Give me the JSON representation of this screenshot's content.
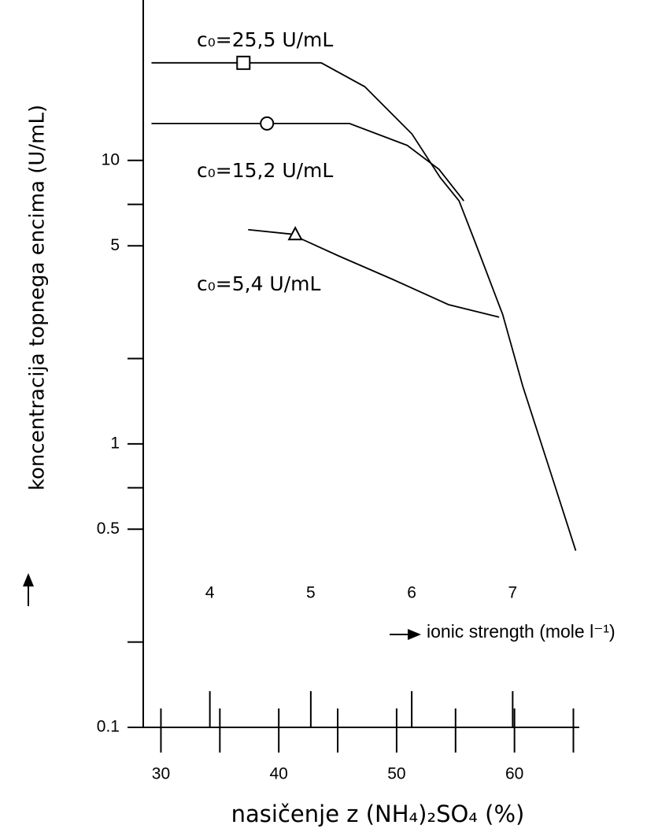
{
  "chart_data": {
    "type": "line",
    "x_label": "nasičenje z (NH₄)₂SO₄ (%)",
    "y_label": "koncentracija topnega encima (U/mL)",
    "x2_label": "ionic strength (mole l⁻¹)",
    "log_y": true,
    "color": "#000000",
    "xlim": [
      28.5,
      65.5
    ],
    "xticks": [
      30,
      40,
      50,
      60
    ],
    "xminorticks": [
      35,
      45,
      55,
      65
    ],
    "ylim": [
      0.1,
      30
    ],
    "yticks": [
      0.1,
      0.5,
      1,
      5,
      10
    ],
    "yminorticks": [
      0.2,
      0.7,
      2,
      7
    ],
    "x2lim": [
      3.34,
      7.66
    ],
    "x2ticks": [
      4,
      5,
      6,
      7
    ],
    "series": [
      {
        "name": "c₀=25,5 U/mL",
        "marker": "square",
        "marker_point": {
          "x": 37.0,
          "y": 22.1
        },
        "x": [
          29.2,
          43.6,
          47.3,
          51.3,
          53.7,
          55.3,
          56.7,
          59.0,
          60.7,
          63.3,
          65.2
        ],
        "values": [
          22.1,
          22.1,
          18.2,
          12.4,
          8.7,
          7.2,
          5.1,
          2.86,
          1.6,
          0.74,
          0.42
        ]
      },
      {
        "name": "c₀=15,2 U/mL",
        "marker": "circle",
        "marker_point": {
          "x": 39.0,
          "y": 13.5
        },
        "x": [
          29.2,
          46.0,
          50.9,
          53.6,
          55.7
        ],
        "values": [
          13.5,
          13.5,
          11.3,
          9.3,
          7.2
        ]
      },
      {
        "name": "c₀=5,4 U/mL",
        "marker": "triangle",
        "marker_point": {
          "x": 41.4,
          "y": 5.5
        },
        "x": [
          37.4,
          41.0,
          45.1,
          49.7,
          54.4,
          58.7
        ],
        "values": [
          5.7,
          5.5,
          4.6,
          3.8,
          3.1,
          2.8
        ]
      }
    ]
  }
}
